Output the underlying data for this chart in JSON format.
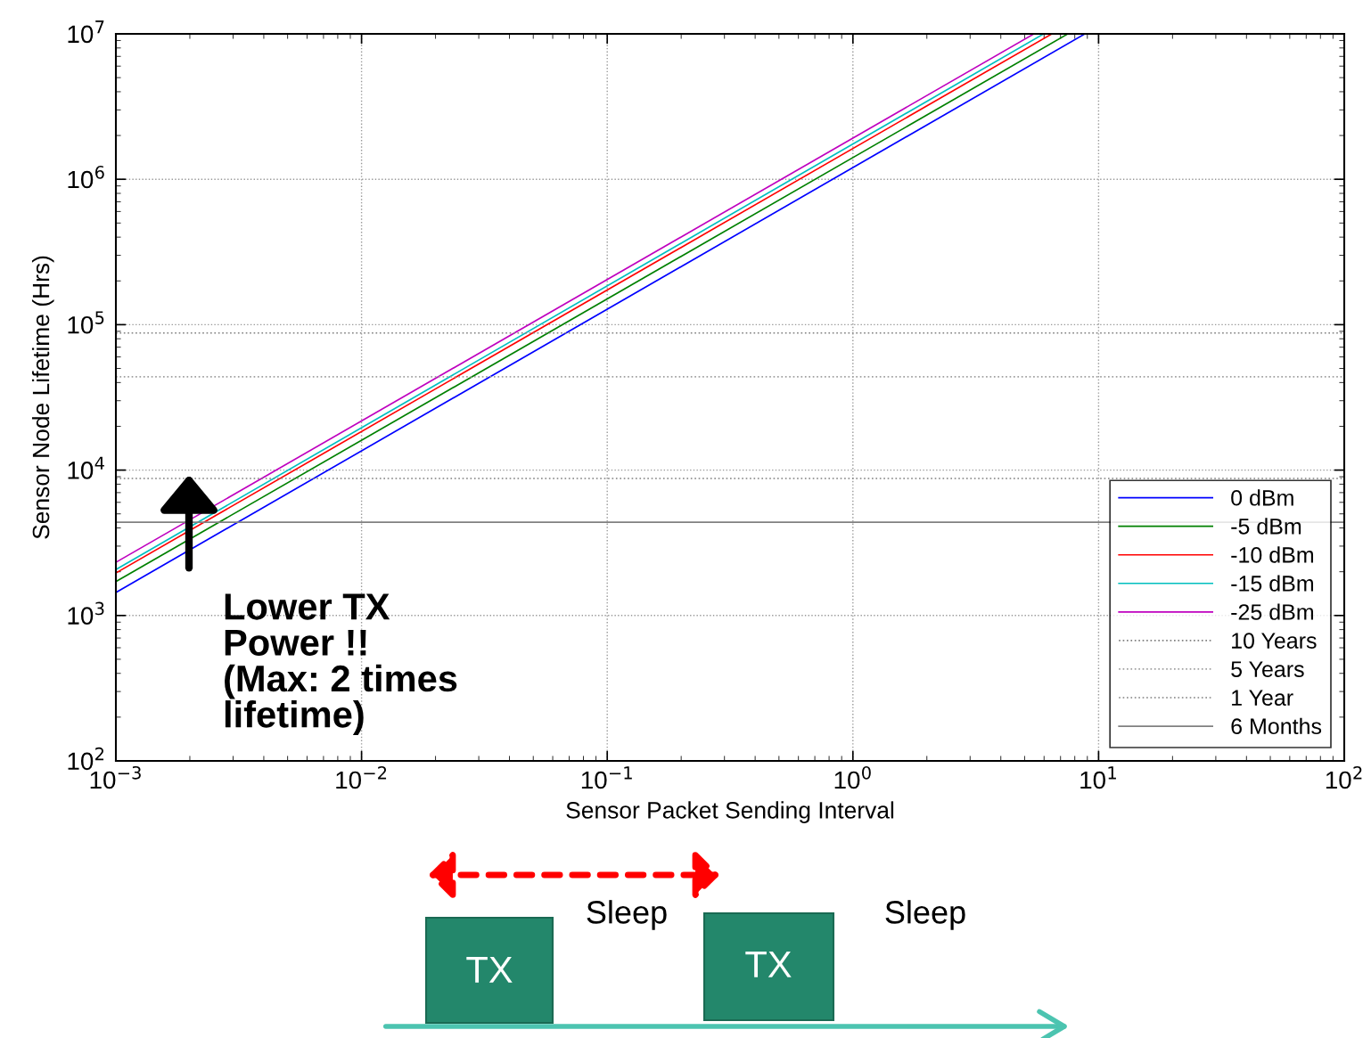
{
  "chart_data": {
    "type": "line",
    "xlabel": "Sensor Packet Sending Interval",
    "ylabel": "Sensor Node Lifetime (Hrs)",
    "series": [
      {
        "name": "0 dBm",
        "color": "#0000ff",
        "x": [
          0.001,
          8.8
        ],
        "values": [
          1440,
          10000000
        ]
      },
      {
        "name": "-5 dBm",
        "color": "#008000",
        "x": [
          0.001,
          7.5
        ],
        "values": [
          1710,
          10000000
        ]
      },
      {
        "name": "-10 dBm",
        "color": "#ff0000",
        "x": [
          0.001,
          6.46
        ],
        "values": [
          1960,
          10000000
        ]
      },
      {
        "name": "-15 dBm",
        "color": "#00bfbf",
        "x": [
          0.001,
          5.98
        ],
        "values": [
          2070,
          10000000
        ]
      },
      {
        "name": "-25 dBm",
        "color": "#bf00bf",
        "x": [
          0.001,
          5.46
        ],
        "values": [
          2320,
          10000000
        ]
      }
    ],
    "ref_lines": [
      {
        "axis": "y",
        "value": 87600,
        "label": "10 Years",
        "color": "#808080",
        "line_style": "dotted"
      },
      {
        "axis": "y",
        "value": 43800,
        "label": "5 Years",
        "color": "#a0a0a0",
        "line_style": "dotted"
      },
      {
        "axis": "y",
        "value": 8760,
        "label": "1 Year",
        "color": "#808080",
        "line_style": "dotted"
      },
      {
        "axis": "y",
        "value": 4380,
        "label": "6 Months",
        "color": "#808080",
        "line_style": "solid"
      }
    ],
    "log": "xy",
    "xlim": [
      0.001,
      100
    ],
    "ylim": [
      100,
      10000000
    ],
    "xticks": [
      {
        "value": 0.001,
        "label": "10$^{−3}$"
      },
      {
        "value": 0.01,
        "label": "10$^{−2}$"
      },
      {
        "value": 0.1,
        "label": "10$^{−1}$"
      },
      {
        "value": 1,
        "label": "10$^{0}$"
      },
      {
        "value": 10,
        "label": "10$^{1}$"
      },
      {
        "value": 100,
        "label": "10$^{2}$"
      }
    ],
    "yticks": [
      {
        "value": 100,
        "label": "10$^{2}$"
      },
      {
        "value": 1000,
        "label": "10$^{3}$"
      },
      {
        "value": 10000,
        "label": "10$^{4}$"
      },
      {
        "value": 100000,
        "label": "10$^{5}$"
      },
      {
        "value": 1000000,
        "label": "10$^{6}$"
      },
      {
        "value": 10000000,
        "label": "10$^{7}$"
      }
    ],
    "grid": true,
    "legend": "lower right",
    "line_style": "solid",
    "marker": "none",
    "annotations": [
      "Lower TX\nPower !!\n(Max: 2 times\nlifetime)",
      "Sleep",
      "Sleep",
      "TX",
      "TX"
    ]
  }
}
